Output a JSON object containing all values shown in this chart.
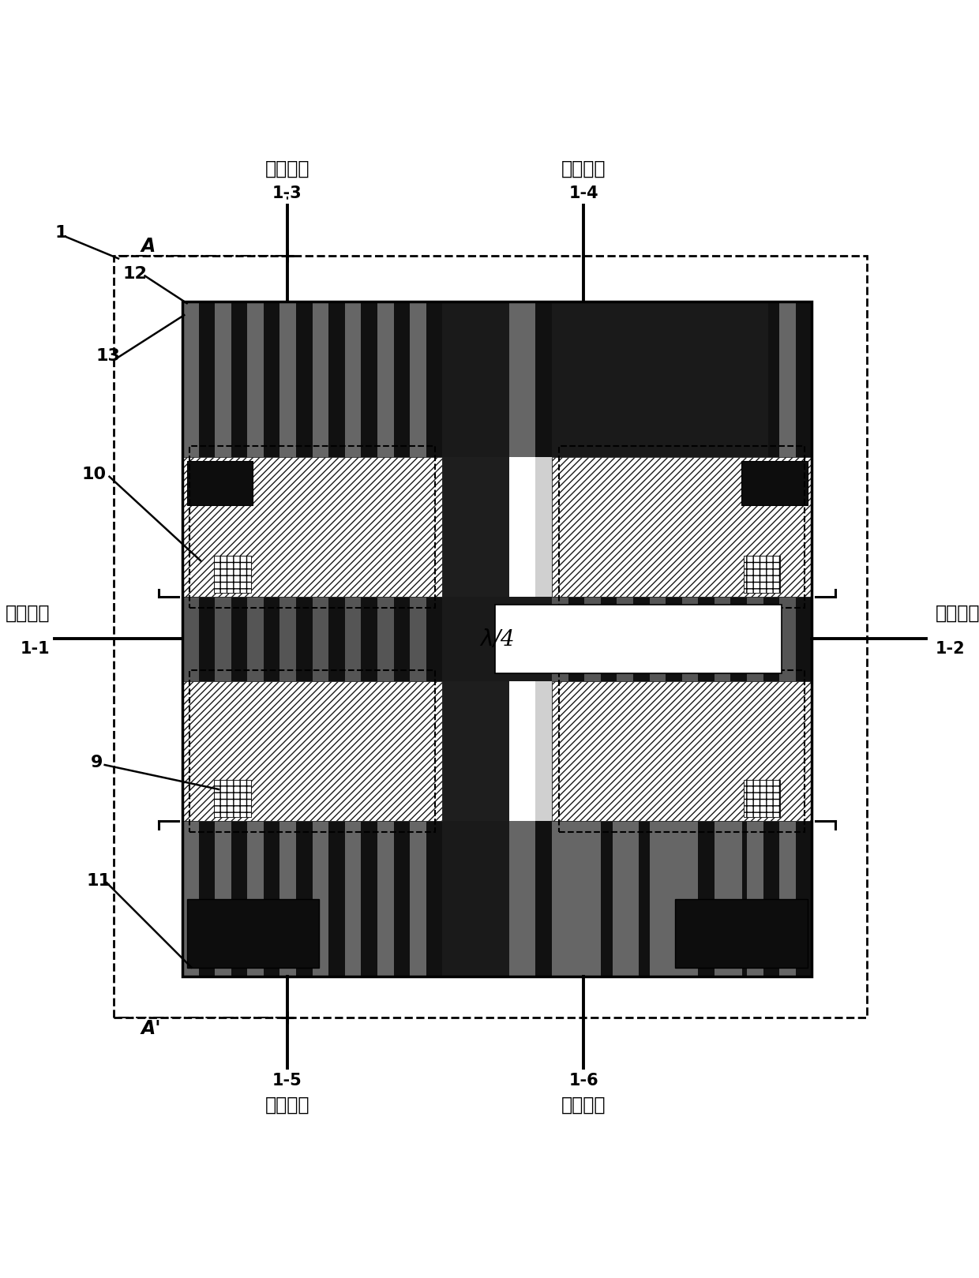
{
  "fig_width": 12.4,
  "fig_height": 16.19,
  "dpi": 100,
  "bg_color": "#ffffff",
  "labels": {
    "port3_cn": "第三端口",
    "port4_cn": "第四端口",
    "port1_cn": "第一端口",
    "port2_cn": "第二端口",
    "port5_cn": "第五端口",
    "port6_cn": "第六端口",
    "port3_num": "1-3",
    "port4_num": "1-4",
    "port1_num": "1-1",
    "port2_num": "1-2",
    "port5_num": "1-5",
    "port6_num": "1-6",
    "lambda_label": "λ/4",
    "A_label": "A",
    "Aprime_label": "A'",
    "num1": "1",
    "num9": "9",
    "num10": "10",
    "num11": "11",
    "num12": "12",
    "num13": "13"
  }
}
